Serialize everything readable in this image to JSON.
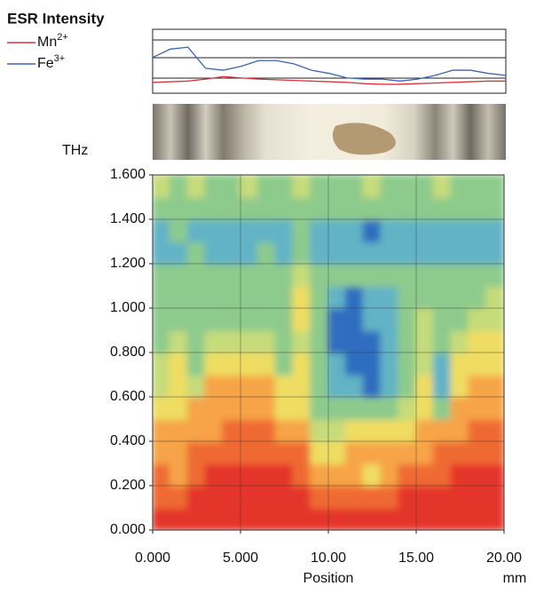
{
  "chart_data": [
    {
      "type": "line",
      "title": "ESR Intensity",
      "x": [
        0,
        1,
        2,
        3,
        4,
        5,
        6,
        7,
        8,
        9,
        10,
        11,
        12,
        13,
        14,
        15,
        16,
        17,
        18,
        19,
        20
      ],
      "xlim": [
        0,
        20
      ],
      "ylim": [
        0,
        1
      ],
      "series": [
        {
          "name": "Mn",
          "charge": "2+",
          "color": "#e0303a",
          "values": [
            0.17,
            0.18,
            0.19,
            0.22,
            0.26,
            0.24,
            0.22,
            0.21,
            0.2,
            0.19,
            0.18,
            0.17,
            0.15,
            0.14,
            0.14,
            0.15,
            0.16,
            0.17,
            0.18,
            0.19,
            0.19
          ]
        },
        {
          "name": "Fe",
          "charge": "3+",
          "color": "#3a62b8",
          "values": [
            0.56,
            0.69,
            0.72,
            0.39,
            0.36,
            0.42,
            0.51,
            0.51,
            0.46,
            0.36,
            0.31,
            0.24,
            0.22,
            0.22,
            0.19,
            0.22,
            0.28,
            0.36,
            0.36,
            0.31,
            0.28
          ]
        }
      ]
    },
    {
      "type": "heatmap",
      "y_label": "THz",
      "x_label": "Position",
      "x_unit": "mm",
      "xlim": [
        0,
        20
      ],
      "ylim": [
        0,
        1.6
      ],
      "xticks": [
        {
          "value": 0,
          "label": "0.000"
        },
        {
          "value": 5,
          "label": "5.000"
        },
        {
          "value": 10,
          "label": "10.00"
        },
        {
          "value": 15,
          "label": "15.00"
        },
        {
          "value": 20,
          "label": "20.00"
        }
      ],
      "yticks": [
        {
          "value": 0,
          "label": "0.000"
        },
        {
          "value": 0.2,
          "label": "0.200"
        },
        {
          "value": 0.4,
          "label": "0.400"
        },
        {
          "value": 0.6,
          "label": "0.600"
        },
        {
          "value": 0.8,
          "label": "0.800"
        },
        {
          "value": 1.0,
          "label": "1.000"
        },
        {
          "value": 1.2,
          "label": "1.200"
        },
        {
          "value": 1.4,
          "label": "1.400"
        },
        {
          "value": 1.6,
          "label": "1.600"
        }
      ],
      "colors": [
        "#e4352b",
        "#ef6a30",
        "#f6a446",
        "#efdd62",
        "#c6db7a",
        "#8dcb8c",
        "#62b3c6",
        "#2e6dbf"
      ],
      "grid": true,
      "z": [
        [
          0,
          0,
          0,
          0,
          0,
          0,
          0,
          0,
          0,
          0,
          0,
          0,
          0,
          0,
          0,
          0,
          0,
          0,
          0,
          0
        ],
        [
          1,
          1,
          0,
          0,
          0,
          0,
          0,
          0,
          0,
          1,
          1,
          1,
          1,
          1,
          0,
          0,
          0,
          0,
          0,
          0
        ],
        [
          1,
          2,
          1,
          0,
          0,
          0,
          0,
          0,
          1,
          2,
          2,
          2,
          3,
          2,
          1,
          1,
          1,
          0,
          0,
          0
        ],
        [
          2,
          2,
          1,
          1,
          1,
          1,
          1,
          1,
          1,
          3,
          3,
          2,
          2,
          2,
          2,
          2,
          1,
          1,
          1,
          1
        ],
        [
          2,
          2,
          2,
          2,
          1,
          1,
          1,
          2,
          2,
          4,
          4,
          3,
          3,
          3,
          3,
          2,
          2,
          2,
          1,
          1
        ],
        [
          3,
          3,
          2,
          2,
          2,
          2,
          2,
          3,
          3,
          5,
          5,
          5,
          5,
          5,
          4,
          3,
          5,
          2,
          2,
          2
        ],
        [
          4,
          3,
          4,
          2,
          2,
          2,
          2,
          3,
          3,
          5,
          6,
          6,
          7,
          6,
          5,
          3,
          6,
          3,
          2,
          2
        ],
        [
          4,
          3,
          5,
          3,
          3,
          3,
          3,
          5,
          3,
          5,
          6,
          7,
          7,
          6,
          5,
          4,
          6,
          3,
          3,
          3
        ],
        [
          5,
          4,
          5,
          4,
          4,
          4,
          4,
          5,
          4,
          5,
          7,
          7,
          7,
          6,
          5,
          4,
          5,
          4,
          3,
          3
        ],
        [
          5,
          5,
          5,
          5,
          5,
          5,
          5,
          5,
          3,
          5,
          7,
          7,
          6,
          6,
          5,
          4,
          5,
          5,
          4,
          4
        ],
        [
          5,
          5,
          5,
          5,
          5,
          5,
          5,
          5,
          3,
          5,
          6,
          7,
          6,
          6,
          5,
          5,
          5,
          5,
          5,
          4
        ],
        [
          5,
          5,
          5,
          5,
          5,
          5,
          5,
          5,
          4,
          5,
          5,
          5,
          5,
          5,
          5,
          5,
          5,
          5,
          5,
          5
        ],
        [
          6,
          6,
          5,
          6,
          6,
          6,
          5,
          6,
          5,
          6,
          6,
          6,
          6,
          6,
          6,
          6,
          6,
          6,
          6,
          6
        ],
        [
          6,
          5,
          6,
          6,
          6,
          6,
          6,
          6,
          5,
          6,
          6,
          6,
          7,
          6,
          6,
          6,
          6,
          6,
          6,
          6
        ],
        [
          5,
          5,
          5,
          5,
          5,
          5,
          5,
          5,
          5,
          5,
          5,
          5,
          5,
          5,
          5,
          5,
          5,
          5,
          5,
          5
        ],
        [
          4,
          5,
          4,
          5,
          5,
          4,
          5,
          5,
          4,
          5,
          5,
          5,
          4,
          5,
          5,
          5,
          4,
          5,
          5,
          5
        ]
      ]
    }
  ]
}
